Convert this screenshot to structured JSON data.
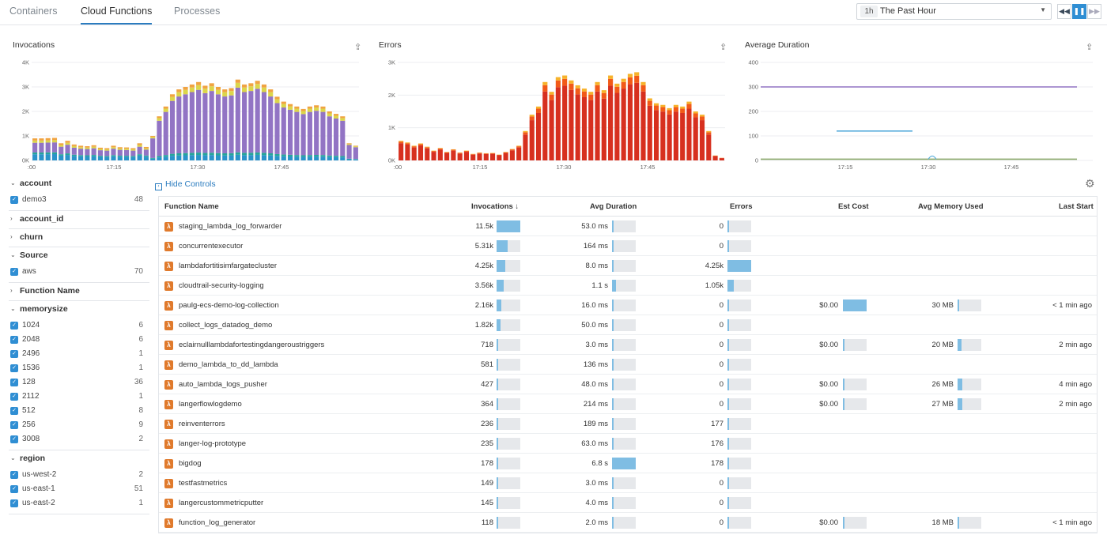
{
  "nav": {
    "tabs": [
      {
        "label": "Containers"
      },
      {
        "label": "Cloud Functions"
      },
      {
        "label": "Processes"
      }
    ],
    "time_badge": "1h",
    "time_label": "The Past Hour"
  },
  "charts": {
    "invocations": {
      "title": "Invocations"
    },
    "errors": {
      "title": "Errors"
    },
    "duration": {
      "title": "Average Duration"
    }
  },
  "chart_data": [
    {
      "type": "bar",
      "title": "Invocations",
      "stacked": true,
      "yticks": [
        "0K",
        "1K",
        "2K",
        "3K",
        "4K"
      ],
      "ylim": [
        0,
        4000
      ],
      "xticks": [
        ":00",
        "17:15",
        "17:30",
        "17:45"
      ],
      "colors": [
        "#2b93c9",
        "#26a69a",
        "#9274c4",
        "#dcd64a",
        "#f0a341"
      ],
      "totals": [
        900,
        900,
        910,
        920,
        700,
        800,
        650,
        600,
        580,
        620,
        520,
        500,
        600,
        540,
        530,
        500,
        700,
        550,
        1000,
        1800,
        2200,
        2700,
        2900,
        3000,
        3100,
        3200,
        3050,
        3150,
        3000,
        2900,
        2950,
        3300,
        3100,
        3150,
        3250,
        3100,
        2900,
        2600,
        2400,
        2300,
        2200,
        2100,
        2200,
        2250,
        2200,
        2000,
        1900,
        1800,
        700,
        600
      ]
    },
    {
      "type": "bar",
      "title": "Errors",
      "stacked": true,
      "yticks": [
        "0K",
        "1K",
        "2K",
        "3K"
      ],
      "ylim": [
        0,
        3000
      ],
      "xticks": [
        ":00",
        "17:15",
        "17:30",
        "17:45"
      ],
      "colors": [
        "#d7301f",
        "#f25a18",
        "#f7b32b"
      ],
      "totals": [
        600,
        550,
        450,
        520,
        420,
        300,
        380,
        260,
        340,
        240,
        300,
        200,
        240,
        220,
        230,
        180,
        260,
        350,
        450,
        900,
        1400,
        1650,
        2400,
        2100,
        2550,
        2600,
        2450,
        2300,
        2200,
        2100,
        2400,
        2150,
        2600,
        2350,
        2500,
        2650,
        2700,
        2400,
        1900,
        1750,
        1700,
        1600,
        1700,
        1650,
        1800,
        1500,
        1400,
        900,
        150,
        80
      ]
    },
    {
      "type": "line",
      "title": "Average Duration",
      "yticks": [
        "0",
        "100",
        "200",
        "300",
        "400"
      ],
      "ylim": [
        0,
        400
      ],
      "xticks": [
        "17:15",
        "17:30",
        "17:45"
      ],
      "series": [
        {
          "color": "#9274c4",
          "points": [
            [
              0,
              300
            ],
            [
              1,
              300
            ]
          ]
        },
        {
          "color": "#5aaedc",
          "points": [
            [
              0.24,
              120
            ],
            [
              0.48,
              120
            ]
          ]
        },
        {
          "color": "#8aa86a",
          "points": [
            [
              0,
              5
            ],
            [
              1,
              5
            ]
          ]
        }
      ]
    }
  ],
  "controls": {
    "hide_label": "Hide Controls"
  },
  "facets": [
    {
      "label": "account",
      "open": true,
      "items": [
        {
          "label": "demo3",
          "count": "48"
        }
      ]
    },
    {
      "label": "account_id",
      "open": false,
      "items": []
    },
    {
      "label": "churn",
      "open": false,
      "items": []
    },
    {
      "label": "Source",
      "open": true,
      "items": [
        {
          "label": "aws",
          "count": "70"
        }
      ]
    },
    {
      "label": "Function Name",
      "open": false,
      "items": []
    },
    {
      "label": "memorysize",
      "open": true,
      "items": [
        {
          "label": "1024",
          "count": "6"
        },
        {
          "label": "2048",
          "count": "6"
        },
        {
          "label": "2496",
          "count": "1"
        },
        {
          "label": "1536",
          "count": "1"
        },
        {
          "label": "128",
          "count": "36"
        },
        {
          "label": "2112",
          "count": "1"
        },
        {
          "label": "512",
          "count": "8"
        },
        {
          "label": "256",
          "count": "9"
        },
        {
          "label": "3008",
          "count": "2"
        }
      ]
    },
    {
      "label": "region",
      "open": true,
      "items": [
        {
          "label": "us-west-2",
          "count": "2"
        },
        {
          "label": "us-east-1",
          "count": "51"
        },
        {
          "label": "us-east-2",
          "count": "1"
        }
      ]
    }
  ],
  "table": {
    "headers": {
      "name": "Function Name",
      "invocations": "Invocations ↓",
      "duration": "Avg Duration",
      "errors": "Errors",
      "cost": "Est Cost",
      "memory": "Avg Memory Used",
      "last": "Last Start"
    },
    "rows": [
      {
        "name": "staging_lambda_log_forwarder",
        "inv": "11.5k",
        "invp": 1.0,
        "dur": "53.0 ms",
        "durp": 0.0,
        "err": "0",
        "errp": 0,
        "cost": "",
        "costp": null,
        "mem": "",
        "memp": null,
        "last": ""
      },
      {
        "name": "concurrentexecutor",
        "inv": "5.31k",
        "invp": 0.46,
        "dur": "164 ms",
        "durp": 0.02,
        "err": "0",
        "errp": 0,
        "cost": "",
        "costp": null,
        "mem": "",
        "memp": null,
        "last": ""
      },
      {
        "name": "lambdafortitisimfargatecluster",
        "inv": "4.25k",
        "invp": 0.37,
        "dur": "8.0 ms",
        "durp": 0.0,
        "err": "4.25k",
        "errp": 1.0,
        "cost": "",
        "costp": null,
        "mem": "",
        "memp": null,
        "last": ""
      },
      {
        "name": "cloudtrail-security-logging",
        "inv": "3.56k",
        "invp": 0.31,
        "dur": "1.1 s",
        "durp": 0.16,
        "err": "1.05k",
        "errp": 0.25,
        "cost": "",
        "costp": null,
        "mem": "",
        "memp": null,
        "last": ""
      },
      {
        "name": "paulg-ecs-demo-log-collection",
        "inv": "2.16k",
        "invp": 0.19,
        "dur": "16.0 ms",
        "durp": 0.0,
        "err": "0",
        "errp": 0,
        "cost": "$0.00",
        "costp": 1.0,
        "mem": "30 MB",
        "memp": 0.05,
        "last": "< 1 min ago"
      },
      {
        "name": "collect_logs_datadog_demo",
        "inv": "1.82k",
        "invp": 0.16,
        "dur": "50.0 ms",
        "durp": 0.0,
        "err": "0",
        "errp": 0,
        "cost": "",
        "costp": null,
        "mem": "",
        "memp": null,
        "last": ""
      },
      {
        "name": "eclairnulllambdafortestingdangeroustriggers",
        "inv": "718",
        "invp": 0.06,
        "dur": "3.0 ms",
        "durp": 0.0,
        "err": "0",
        "errp": 0,
        "cost": "$0.00",
        "costp": 0.08,
        "mem": "20 MB",
        "memp": 0.16,
        "last": "2 min ago"
      },
      {
        "name": "demo_lambda_to_dd_lambda",
        "inv": "581",
        "invp": 0.05,
        "dur": "136 ms",
        "durp": 0.02,
        "err": "0",
        "errp": 0,
        "cost": "",
        "costp": null,
        "mem": "",
        "memp": null,
        "last": ""
      },
      {
        "name": "auto_lambda_logs_pusher",
        "inv": "427",
        "invp": 0.04,
        "dur": "48.0 ms",
        "durp": 0.0,
        "err": "0",
        "errp": 0,
        "cost": "$0.00",
        "costp": 0.05,
        "mem": "26 MB",
        "memp": 0.2,
        "last": "4 min ago"
      },
      {
        "name": "langerflowlogdemo",
        "inv": "364",
        "invp": 0.03,
        "dur": "214 ms",
        "durp": 0.03,
        "err": "0",
        "errp": 0,
        "cost": "$0.00",
        "costp": 0.05,
        "mem": "27 MB",
        "memp": 0.2,
        "last": "2 min ago"
      },
      {
        "name": "reinventerrors",
        "inv": "236",
        "invp": 0.02,
        "dur": "189 ms",
        "durp": 0.03,
        "err": "177",
        "errp": 0.04,
        "cost": "",
        "costp": null,
        "mem": "",
        "memp": null,
        "last": ""
      },
      {
        "name": "langer-log-prototype",
        "inv": "235",
        "invp": 0.02,
        "dur": "63.0 ms",
        "durp": 0.0,
        "err": "176",
        "errp": 0.04,
        "cost": "",
        "costp": null,
        "mem": "",
        "memp": null,
        "last": ""
      },
      {
        "name": "bigdog",
        "inv": "178",
        "invp": 0.015,
        "dur": "6.8 s",
        "durp": 1.0,
        "err": "178",
        "errp": 0.04,
        "cost": "",
        "costp": null,
        "mem": "",
        "memp": null,
        "last": ""
      },
      {
        "name": "testfastmetrics",
        "inv": "149",
        "invp": 0.013,
        "dur": "3.0 ms",
        "durp": 0.0,
        "err": "0",
        "errp": 0,
        "cost": "",
        "costp": null,
        "mem": "",
        "memp": null,
        "last": ""
      },
      {
        "name": "langercustommetricputter",
        "inv": "145",
        "invp": 0.013,
        "dur": "4.0 ms",
        "durp": 0.0,
        "err": "0",
        "errp": 0,
        "cost": "",
        "costp": null,
        "mem": "",
        "memp": null,
        "last": ""
      },
      {
        "name": "function_log_generator",
        "inv": "118",
        "invp": 0.01,
        "dur": "2.0 ms",
        "durp": 0.0,
        "err": "0",
        "errp": 0,
        "cost": "$0.00",
        "costp": 0.03,
        "mem": "18 MB",
        "memp": 0.08,
        "last": "< 1 min ago"
      }
    ]
  }
}
